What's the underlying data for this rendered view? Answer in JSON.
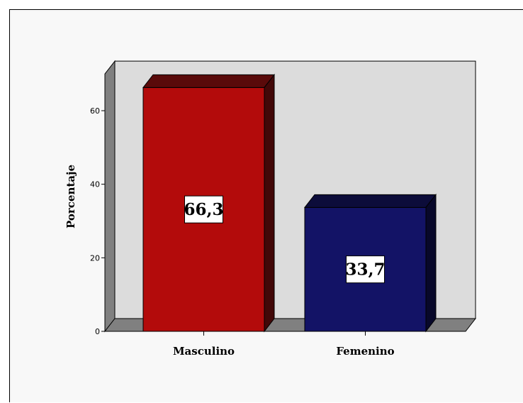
{
  "chart_data": {
    "type": "bar",
    "style": "3d",
    "title": "",
    "xlabel": "",
    "ylabel": "Porcentaje",
    "categories": [
      "Masculino",
      "Femenino"
    ],
    "values": [
      66.3,
      33.7
    ],
    "value_labels": [
      "66,3",
      "33,7"
    ],
    "yticks": [
      "0",
      "20",
      "40",
      "60"
    ],
    "ylim": [
      0,
      70
    ],
    "grid": false,
    "legend": "none",
    "colors": {
      "bars": [
        "#b30b0b",
        "#131366"
      ],
      "bar_tops": [
        "#5a0a0a",
        "#0c0c3a"
      ],
      "bar_sides": [
        "#420808",
        "#08082a"
      ],
      "plot_back": "#dcdcdc",
      "plot_walls": "#808080",
      "background": "#f8f8f8"
    }
  }
}
